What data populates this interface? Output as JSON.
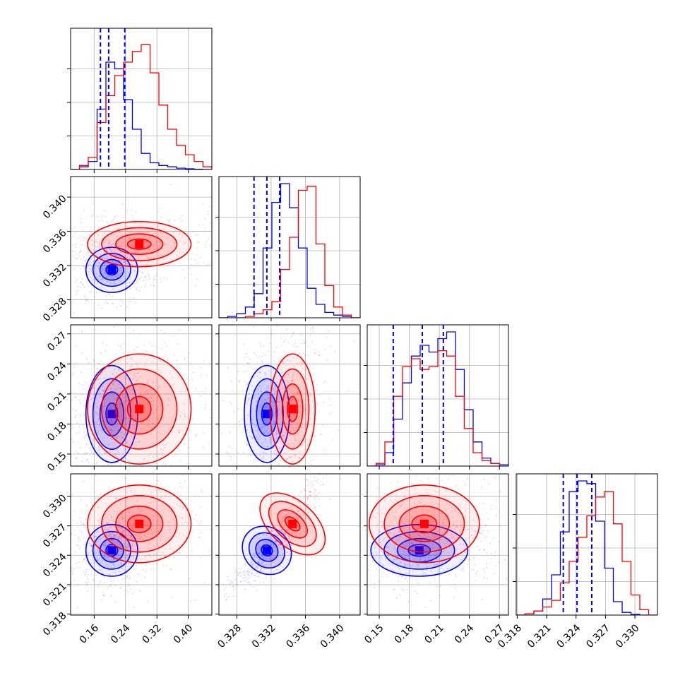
{
  "chart_data": {
    "type": "corner",
    "parameters": [
      {
        "ticks": [
          0.16,
          0.24,
          0.32,
          0.4
        ],
        "tick_labels": [
          "0.16",
          "0.24",
          "0.32",
          "0.40"
        ],
        "range": [
          0.1,
          0.46
        ]
      },
      {
        "ticks": [
          0.328,
          0.332,
          0.336,
          0.34
        ],
        "tick_labels": [
          "0.328",
          "0.332",
          "0.336",
          "0.340"
        ],
        "range": [
          0.3259,
          0.3424
        ]
      },
      {
        "ticks": [
          0.15,
          0.18,
          0.21,
          0.24,
          0.27
        ],
        "tick_labels": [
          "0.15",
          "0.18",
          "0.21",
          "0.24",
          "0.27"
        ],
        "range": [
          0.138,
          0.279
        ]
      },
      {
        "ticks": [
          0.318,
          0.321,
          0.324,
          0.327,
          0.33
        ],
        "tick_labels": [
          "0.318",
          "0.321",
          "0.324",
          "0.327",
          "0.330"
        ],
        "range": [
          0.3179,
          0.3323
        ]
      }
    ],
    "series": [
      {
        "name": "",
        "color": "#0000ff",
        "means": [
          0.205,
          0.3315,
          0.19,
          0.3245
        ],
        "sds": [
          0.03,
          0.0012,
          0.022,
          0.0012
        ],
        "quantiles": [
          [
            0.176,
            0.197,
            0.238
          ],
          [
            0.33,
            0.3315,
            0.333
          ],
          [
            0.164,
            0.193,
            0.214
          ],
          [
            0.3227,
            0.3241,
            0.3256
          ]
        ],
        "histograms": [
          [
            0.0,
            0.02,
            0.06,
            0.45,
            0.8,
            0.75,
            0.52,
            0.3,
            0.12,
            0.05,
            0.03,
            0.02,
            0.01,
            0.005,
            0.002,
            0.0
          ],
          [
            0.0,
            0.01,
            0.03,
            0.08,
            0.18,
            0.52,
            0.86,
            1.0,
            0.82,
            0.52,
            0.22,
            0.1,
            0.04,
            0.02,
            0.01,
            0.0
          ],
          [
            0.0,
            0.01,
            0.1,
            0.35,
            0.62,
            0.82,
            0.9,
            0.85,
            0.95,
            1.0,
            0.72,
            0.42,
            0.18,
            0.06,
            0.02,
            0.01
          ],
          [
            0.0,
            0.01,
            0.03,
            0.12,
            0.3,
            0.62,
            0.92,
            1.0,
            0.98,
            0.7,
            0.35,
            0.1,
            0.02,
            0.005,
            0.0,
            0.0
          ]
        ]
      },
      {
        "name": "",
        "color": "#ff0000",
        "means": [
          0.275,
          0.3345,
          0.195,
          0.3272
        ],
        "sds": [
          0.06,
          0.0012,
          0.025,
          0.0018
        ],
        "histograms": [
          [
            0.0,
            0.03,
            0.09,
            0.35,
            0.55,
            0.7,
            0.8,
            0.88,
            0.93,
            0.72,
            0.48,
            0.3,
            0.18,
            0.11,
            0.06,
            0.02
          ],
          [
            0.0,
            0.0,
            0.0,
            0.01,
            0.03,
            0.06,
            0.12,
            0.36,
            0.6,
            0.95,
            0.98,
            0.55,
            0.24,
            0.08,
            0.02,
            0.0
          ],
          [
            0.0,
            0.02,
            0.18,
            0.52,
            0.74,
            0.8,
            0.72,
            0.74,
            0.86,
            0.82,
            0.52,
            0.28,
            0.1,
            0.04,
            0.02,
            0.0
          ],
          [
            0.0,
            0.01,
            0.03,
            0.06,
            0.11,
            0.24,
            0.4,
            0.58,
            0.74,
            0.88,
            0.92,
            0.68,
            0.4,
            0.15,
            0.04,
            0.0
          ]
        ]
      }
    ],
    "quantile_line_style": "dashed",
    "grid": true,
    "xlabel": "",
    "ylabel": "",
    "title": ""
  }
}
